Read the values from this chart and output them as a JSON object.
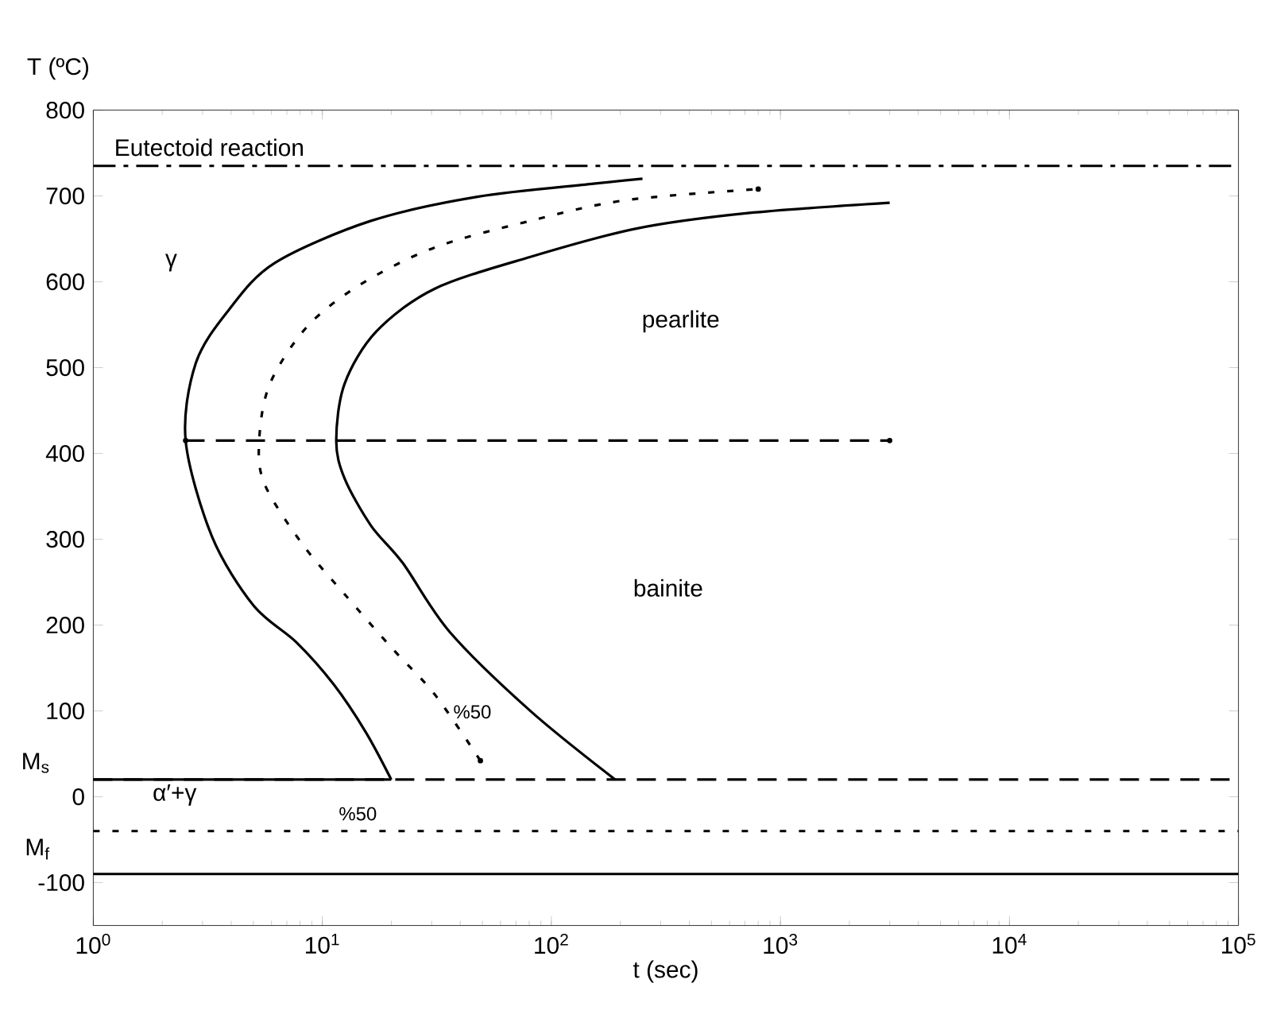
{
  "chart_data": {
    "type": "line",
    "xlabel": "t (sec)",
    "ylabel": "T (ºC)",
    "log": "x",
    "grid": false,
    "marker": "none",
    "xlim": [
      1,
      100000
    ],
    "ylim": [
      -150,
      800
    ],
    "xticks": [
      {
        "value": 1,
        "label": "10$^{0}$"
      },
      {
        "value": 10,
        "label": "10$^{1}$"
      },
      {
        "value": 100,
        "label": "10$^{2}$"
      },
      {
        "value": 1000,
        "label": "10$^{3}$"
      },
      {
        "value": 10000,
        "label": "10$^{4}$"
      },
      {
        "value": 100000,
        "label": "10$^{5}$"
      }
    ],
    "yticks": [
      -100,
      0,
      100,
      200,
      300,
      400,
      500,
      600,
      700,
      800
    ],
    "series": [
      {
        "color": "#000000",
        "line_style": "solid",
        "x": [
          20,
          15.5,
          11.2,
          7.7,
          5.0,
          3.3,
          2.53,
          2.8,
          3.9,
          6.2,
          16.3,
          47.5,
          150,
          250
        ],
        "values": [
          20,
          75,
          131,
          180,
          223,
          303,
          415,
          505,
          567,
          622,
          671,
          699,
          714,
          720
        ]
      },
      {
        "color": "#000000",
        "line_style": "dotted",
        "x": [
          49,
          31,
          20,
          12.6,
          8.2,
          5.6,
          5.3,
          5.9,
          8.6,
          14.7,
          31,
          81,
          210,
          800
        ],
        "values": [
          42,
          119,
          174,
          235,
          294,
          364,
          415,
          481,
          548,
          597,
          640,
          671,
          695,
          708
        ]
      },
      {
        "color": "#000000",
        "line_style": "solid",
        "x": [
          190,
          81,
          36,
          22.5,
          16.3,
          12.5,
          11.5,
          12.5,
          17.2,
          31,
          81,
          235,
          720,
          3000
        ],
        "values": [
          20,
          100,
          192,
          272,
          316,
          371,
          415,
          481,
          542,
          592,
          629,
          662,
          680,
          692
        ]
      },
      {
        "color": "#000000",
        "line_style": "dashed",
        "x": [
          2.53,
          3000
        ],
        "values": [
          415,
          415
        ]
      },
      {
        "color": "#000000",
        "line_style": "solid",
        "x": [
          1,
          20
        ],
        "values": [
          20,
          20
        ]
      }
    ],
    "ref_lines": [
      {
        "axis": "y",
        "value": 735,
        "label": "Eutectoid reaction",
        "color": "#000000",
        "line_style": "dashdot"
      },
      {
        "axis": "y",
        "value": 20,
        "label": "M$_{s}$",
        "color": "#000000",
        "line_style": "dashed"
      },
      {
        "axis": "y",
        "value": -40,
        "color": "#000000",
        "line_style": "dotted"
      },
      {
        "axis": "y",
        "value": -90,
        "label": "M$_{f}$",
        "color": "#000000",
        "line_style": "solid"
      }
    ],
    "annotations": [
      "γ",
      "pearlite",
      "bainite",
      "%50",
      "α′+γ",
      "%50"
    ]
  }
}
